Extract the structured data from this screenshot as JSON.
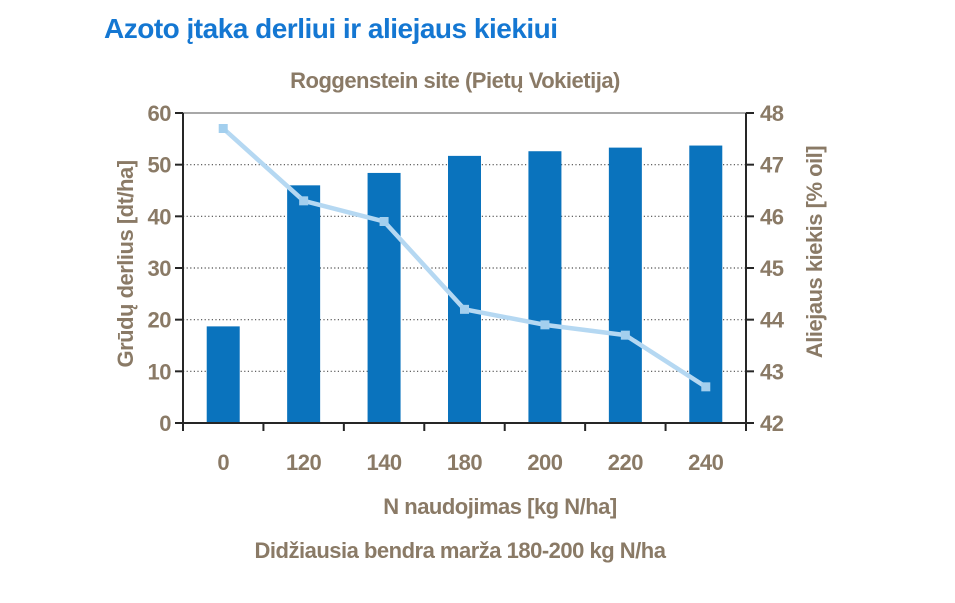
{
  "title": {
    "text": "Azoto įtaka derliui ir aliejaus kiekiui"
  },
  "footnote": {
    "text": "Didžiausia bendra marža 180-200 kg N/ha"
  },
  "chart_data": {
    "type": "bar",
    "title": "Roggenstein site (Pietų Vokietija)",
    "categories": [
      "0",
      "120",
      "140",
      "180",
      "200",
      "220",
      "240"
    ],
    "series": [
      {
        "name": "Grūdų derlius",
        "type": "bar",
        "axis": "left",
        "values": [
          18.7,
          46.0,
          48.4,
          51.7,
          52.6,
          53.3,
          53.7
        ]
      },
      {
        "name": "Aliejaus kiekis",
        "type": "line",
        "axis": "right",
        "values": [
          47.7,
          46.3,
          45.9,
          44.2,
          43.9,
          43.7,
          42.7
        ]
      }
    ],
    "xlabel": "N naudojimas [kg N/ha]",
    "left_axis": {
      "label": "Grūdų derlius [dt/ha]",
      "min": 0,
      "max": 60,
      "step": 10,
      "ticks": [
        "0",
        "10",
        "20",
        "30",
        "40",
        "50",
        "60"
      ]
    },
    "right_axis": {
      "label": "Aliejaus kiekis [% oil]",
      "min": 42,
      "max": 48,
      "step": 1,
      "ticks": [
        "42",
        "43",
        "44",
        "45",
        "46",
        "47",
        "48"
      ]
    },
    "grid": "dotted horizontal gridlines at left-axis steps 10-50",
    "legend": "none"
  },
  "colors": {
    "title_blue": "#1477d2",
    "text_brown": "#8a7a66",
    "bar_fill": "#0a73bd",
    "line_stroke": "#b5d8f2",
    "marker_fill": "#a3cfee",
    "axis_line": "#262626",
    "grid_dots": "#4d4d4d",
    "top_border": "#8c8c8c"
  }
}
